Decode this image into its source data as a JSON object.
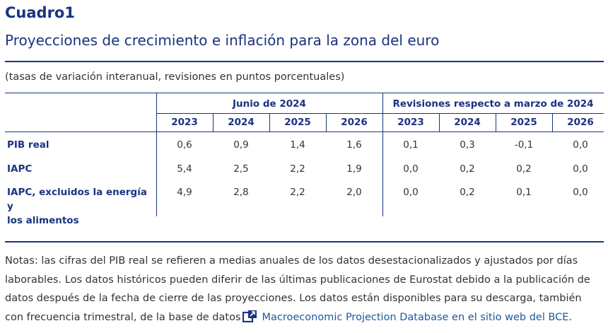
{
  "header": {
    "title": "Cuadro1",
    "subtitle": "Proyecciones de crecimiento e inflación para la zona del euro",
    "units": "(tasas de variación interanual, revisiones en puntos porcentuales)"
  },
  "table": {
    "group_headers": [
      "Junio de 2024",
      "Revisiones respecto a marzo de 2024"
    ],
    "years": [
      "2023",
      "2024",
      "2025",
      "2026",
      "2023",
      "2024",
      "2025",
      "2026"
    ],
    "rows": [
      {
        "label_lines": [
          "PIB real"
        ],
        "values": [
          "0,6",
          "0,9",
          "1,4",
          "1,6",
          "0,1",
          "0,3",
          "-0,1",
          "0,0"
        ]
      },
      {
        "label_lines": [
          "IAPC"
        ],
        "values": [
          "5,4",
          "2,5",
          "2,2",
          "1,9",
          "0,0",
          "0,2",
          "0,2",
          "0,0"
        ]
      },
      {
        "label_lines": [
          "IAPC, excluidos la energía y",
          "los alimentos"
        ],
        "values": [
          "4,9",
          "2,8",
          "2,2",
          "2,0",
          "0,0",
          "0,2",
          "0,1",
          "0,0"
        ]
      }
    ]
  },
  "notes": {
    "lines": [
      "Notas: las cifras del PIB real se refieren a medias anuales de los datos desestacionalizados y ajustados por días",
      "laborables. Los datos históricos pueden diferir de las últimas publicaciones de Eurostat debido a la publicación de",
      "datos después de la fecha de cierre de las proyecciones. Los datos están disponibles para su descarga, también"
    ],
    "last_prefix": "con frecuencia trimestral, de la base de datos",
    "link_text": "Macroeconomic Projection Database en el sitio web del BCE",
    "last_suffix": ".",
    "link_icon": "external-link-icon"
  },
  "colors": {
    "accent": "#1a3380",
    "text": "#333333",
    "link": "#1a5a9c"
  }
}
